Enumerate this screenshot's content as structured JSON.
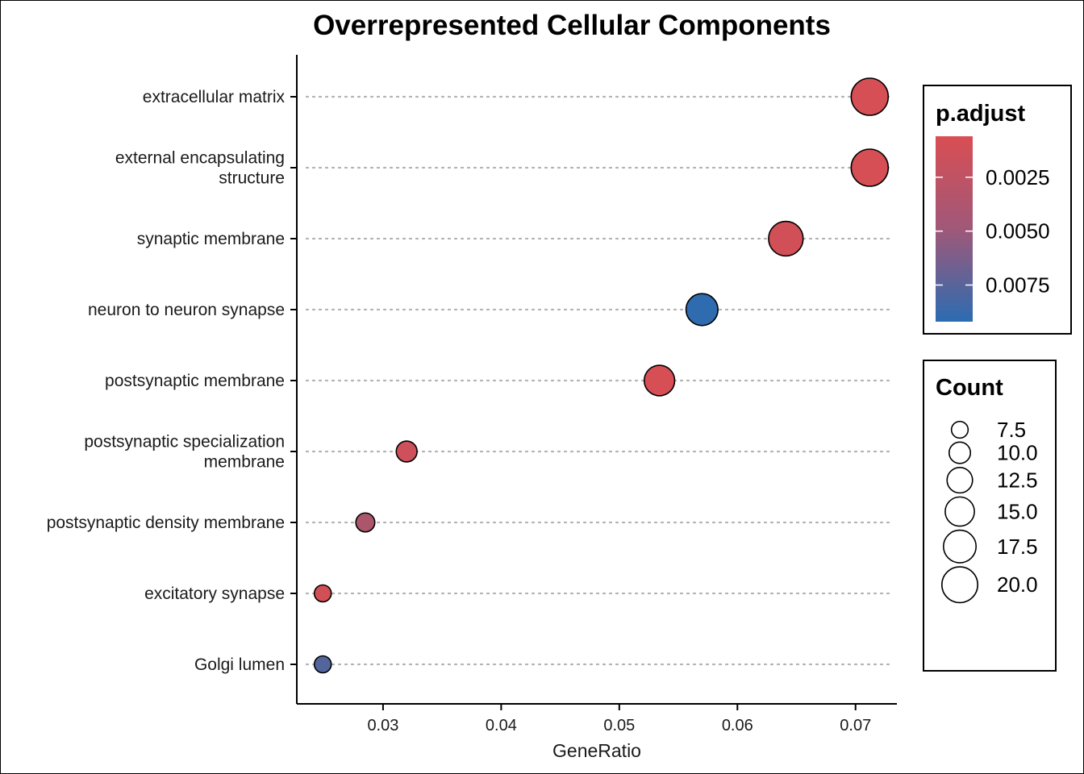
{
  "chart_data": {
    "type": "scatter",
    "title": "Overrepresented Cellular Components",
    "xlabel": "GeneRatio",
    "ylabel": "",
    "xlim": [
      0.0227,
      0.0735
    ],
    "x_ticks": [
      0.03,
      0.04,
      0.05,
      0.06,
      0.07
    ],
    "x_tick_labels": [
      "0.03",
      "0.04",
      "0.05",
      "0.06",
      "0.07"
    ],
    "categories": [
      {
        "label_lines": [
          "extracellular matrix"
        ],
        "gene_ratio": 0.0712,
        "count": 20,
        "p_adjust": 0.0008
      },
      {
        "label_lines": [
          "external encapsulating",
          "structure"
        ],
        "gene_ratio": 0.0712,
        "count": 20,
        "p_adjust": 0.0008
      },
      {
        "label_lines": [
          "synaptic membrane"
        ],
        "gene_ratio": 0.0641,
        "count": 18,
        "p_adjust": 0.001
      },
      {
        "label_lines": [
          "neuron to neuron synapse"
        ],
        "gene_ratio": 0.057,
        "count": 16,
        "p_adjust": 0.009
      },
      {
        "label_lines": [
          "postsynaptic membrane"
        ],
        "gene_ratio": 0.0534,
        "count": 15,
        "p_adjust": 0.0008
      },
      {
        "label_lines": [
          "postsynaptic specialization",
          "membrane"
        ],
        "gene_ratio": 0.032,
        "count": 9,
        "p_adjust": 0.0012
      },
      {
        "label_lines": [
          "postsynaptic density membrane"
        ],
        "gene_ratio": 0.0285,
        "count": 8,
        "p_adjust": 0.0028
      },
      {
        "label_lines": [
          "excitatory synapse"
        ],
        "gene_ratio": 0.0249,
        "count": 7,
        "p_adjust": 0.0009
      },
      {
        "label_lines": [
          "Golgi lumen"
        ],
        "gene_ratio": 0.0249,
        "count": 7,
        "p_adjust": 0.0072
      }
    ],
    "color_legend": {
      "title": "p.adjust",
      "range": [
        0.0006,
        0.0092
      ],
      "low_color": "#d94e53",
      "high_color": "#2b6cb1",
      "ticks": [
        0.0025,
        0.005,
        0.0075
      ],
      "tick_labels": [
        "0.0025",
        "0.0050",
        "0.0075"
      ]
    },
    "size_legend": {
      "title": "Count",
      "values": [
        7.5,
        10.0,
        12.5,
        15.0,
        17.5,
        20.0
      ],
      "labels": [
        "7.5",
        "10.0",
        "12.5",
        "15.0",
        "17.5",
        "20.0"
      ]
    }
  }
}
